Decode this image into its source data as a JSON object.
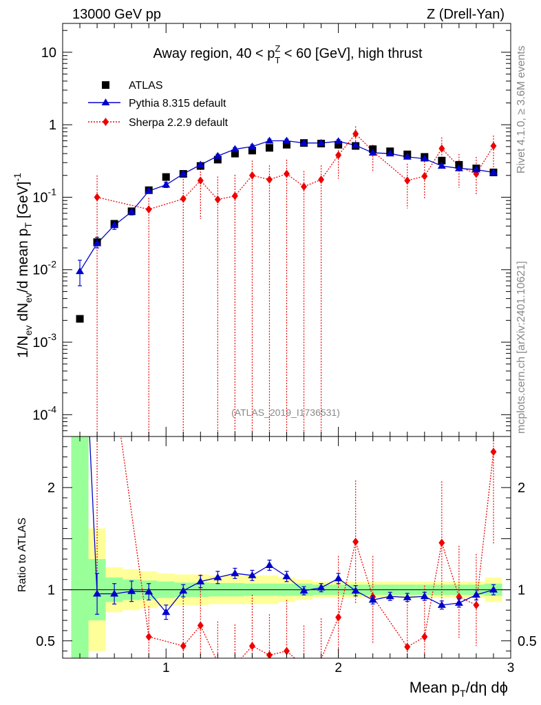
{
  "header": {
    "left": "13000 GeV pp",
    "right": "Z (Drell-Yan)"
  },
  "side_text": {
    "rivet": "Rivet 4.1.0, ≥ 3.6M events",
    "mcplots": "mcplots.cern.ch [arXiv:2401.10621]"
  },
  "watermark": "(ATLAS_2019_I1736531)",
  "chart_data": {
    "type": "scatter",
    "title": "Away region, 40 < p_T^Z < 60 [GeV], high thrust",
    "title_parts": {
      "pre": "Away region, 40 < p",
      "sup": "Z",
      "sub": "T",
      "post": " < 60 [GeV], high thrust"
    },
    "xlabel": "Mean p_T/dη dϕ",
    "xlabel_parts": {
      "pre": "Mean p",
      "sub": "T",
      "post": "/dη dϕ"
    },
    "ylabel": "1/N_ev dN_ev/d mean p_T [GeV]^-1",
    "ylabel_parts": {
      "a": "1/N",
      "a_sub": "ev",
      "b": " dN",
      "b_sub": "ev",
      "c": "/d mean p",
      "c_sub": "T",
      "d": " [GeV]",
      "d_sup": "-1"
    },
    "ratio_ylabel": "Ratio to ATLAS",
    "xlim": [
      0.4,
      3.0
    ],
    "ylim": [
      5e-05,
      25
    ],
    "yscale": "log",
    "ratio_ylim": [
      0.33,
      2.5
    ],
    "x_ticks": [
      "1",
      "2",
      "3"
    ],
    "y_ticks": [
      {
        "base": "10",
        "exp": "-4",
        "value": 0.0001
      },
      {
        "base": "10",
        "exp": "-3",
        "value": 0.001
      },
      {
        "base": "10",
        "exp": "-2",
        "value": 0.01
      },
      {
        "base": "10",
        "exp": "-1",
        "value": 0.1
      },
      {
        "base": "1",
        "exp": "",
        "value": 1
      },
      {
        "base": "10",
        "exp": "",
        "value": 10
      }
    ],
    "ratio_ticks": [
      {
        "label": "0.5",
        "value": 0.5
      },
      {
        "label": "1",
        "value": 1
      },
      {
        "label": "2",
        "value": 2
      }
    ],
    "legend": [
      "ATLAS",
      "Pythia 8.315 default",
      "Sherpa 2.2.9 default"
    ],
    "x": [
      0.5,
      0.6,
      0.7,
      0.8,
      0.9,
      1.0,
      1.1,
      1.2,
      1.3,
      1.4,
      1.5,
      1.6,
      1.7,
      1.8,
      1.9,
      2.0,
      2.1,
      2.2,
      2.3,
      2.4,
      2.5,
      2.6,
      2.7,
      2.8,
      2.9
    ],
    "series": [
      {
        "name": "ATLAS",
        "color": "#000000",
        "values": [
          0.0021,
          0.024,
          0.043,
          0.064,
          0.125,
          0.19,
          0.21,
          0.27,
          0.33,
          0.4,
          0.44,
          0.48,
          0.53,
          0.56,
          0.55,
          0.53,
          0.51,
          0.46,
          0.43,
          0.39,
          0.36,
          0.32,
          0.28,
          0.25,
          0.22
        ]
      },
      {
        "name": "Pythia 8.315 default",
        "color": "#0000cc",
        "values": [
          0.0095,
          0.023,
          0.041,
          0.063,
          0.122,
          0.148,
          0.21,
          0.28,
          0.37,
          0.46,
          0.5,
          0.6,
          0.6,
          0.56,
          0.56,
          0.59,
          0.52,
          0.41,
          0.4,
          0.36,
          0.34,
          0.27,
          0.25,
          0.24,
          0.22
        ],
        "err_low": [
          0.0035,
          0.003,
          0.005,
          0.006,
          0.008,
          0.012,
          0.014,
          0.016,
          0.02,
          0.022,
          0.025,
          0.03,
          0.03,
          0.03,
          0.03,
          0.03,
          0.025,
          0.02,
          0.02,
          0.02,
          0.018,
          0.016,
          0.015,
          0.014,
          0.013
        ],
        "err_high": [
          0.004,
          0.005,
          0.006,
          0.007,
          0.009,
          0.013,
          0.015,
          0.018,
          0.022,
          0.025,
          0.028,
          0.033,
          0.033,
          0.033,
          0.032,
          0.032,
          0.028,
          0.022,
          0.022,
          0.02,
          0.02,
          0.018,
          0.016,
          0.015,
          0.014
        ]
      },
      {
        "name": "Sherpa 2.2.9 default",
        "color": "#ee0000",
        "values": [
          null,
          0.1,
          null,
          null,
          0.068,
          null,
          0.095,
          0.17,
          0.093,
          0.104,
          0.2,
          0.175,
          0.21,
          0.14,
          0.175,
          0.38,
          0.75,
          0.43,
          null,
          0.17,
          0.195,
          0.47,
          0.265,
          0.21,
          0.51
        ],
        "err_low": [
          null,
          0.1,
          null,
          null,
          0.068,
          null,
          0.095,
          0.12,
          0.093,
          0.104,
          0.2,
          0.175,
          0.21,
          0.14,
          0.175,
          0.2,
          0.3,
          0.2,
          null,
          0.1,
          0.1,
          0.22,
          0.13,
          0.1,
          0.25
        ],
        "err_high": [
          null,
          0.1,
          null,
          null,
          0.03,
          null,
          0.1,
          0.1,
          0.1,
          0.1,
          0.12,
          0.1,
          0.12,
          0.09,
          0.1,
          0.25,
          0.2,
          0.1,
          null,
          0.12,
          0.12,
          0.2,
          0.13,
          0.15,
          0.2
        ]
      }
    ],
    "ratio_series": [
      {
        "name": "Pythia 8.315 default",
        "color": "#0000cc",
        "values": [
          4.5,
          0.96,
          0.96,
          0.985,
          0.98,
          0.78,
          0.99,
          1.08,
          1.12,
          1.16,
          1.14,
          1.24,
          1.13,
          0.99,
          1.02,
          1.11,
          0.99,
          0.9,
          0.935,
          0.925,
          0.935,
          0.85,
          0.87,
          0.95,
          1.0
        ],
        "err": [
          1.7,
          0.2,
          0.1,
          0.1,
          0.08,
          0.07,
          0.06,
          0.06,
          0.06,
          0.05,
          0.05,
          0.05,
          0.05,
          0.04,
          0.04,
          0.05,
          0.05,
          0.04,
          0.04,
          0.04,
          0.04,
          0.04,
          0.04,
          0.05,
          0.05
        ]
      },
      {
        "name": "Sherpa 2.2.9 default",
        "color": "#ee0000",
        "values": [
          null,
          4.17,
          null,
          null,
          0.54,
          null,
          0.45,
          0.65,
          0.29,
          0.26,
          0.45,
          0.36,
          0.4,
          0.25,
          0.32,
          0.73,
          1.47,
          0.93,
          null,
          0.44,
          0.54,
          1.46,
          0.93,
          0.85,
          2.35
        ],
        "err_low": [
          null,
          3.0,
          null,
          null,
          0.54,
          null,
          0.45,
          0.5,
          0.29,
          0.26,
          0.45,
          0.36,
          0.4,
          0.25,
          0.32,
          0.4,
          0.6,
          0.45,
          null,
          0.2,
          0.25,
          0.6,
          0.4,
          0.4,
          0.9
        ],
        "err_high": [
          null,
          0.5,
          null,
          null,
          0.3,
          null,
          0.5,
          0.5,
          0.4,
          0.4,
          0.5,
          0.4,
          0.5,
          0.4,
          0.4,
          0.6,
          0.6,
          0.4,
          null,
          0.5,
          0.5,
          0.6,
          0.5,
          0.5,
          0.6
        ]
      }
    ],
    "bands": {
      "edges": [
        0.45,
        0.55,
        0.65,
        0.75,
        0.85,
        0.95,
        1.05,
        1.15,
        1.25,
        1.35,
        1.45,
        1.55,
        1.65,
        1.75,
        1.85,
        1.95,
        2.05,
        2.15,
        2.25,
        2.35,
        2.45,
        2.55,
        2.65,
        2.75,
        2.85,
        2.95
      ],
      "green": [
        1.8,
        0.3,
        0.12,
        0.1,
        0.09,
        0.08,
        0.07,
        0.07,
        0.065,
        0.065,
        0.06,
        0.06,
        0.06,
        0.06,
        0.05,
        0.05,
        0.05,
        0.05,
        0.05,
        0.05,
        0.05,
        0.05,
        0.05,
        0.05,
        0.06
      ],
      "yellow": [
        3.0,
        0.6,
        0.22,
        0.2,
        0.18,
        0.16,
        0.15,
        0.15,
        0.14,
        0.14,
        0.14,
        0.14,
        0.12,
        0.1,
        0.08,
        0.08,
        0.08,
        0.08,
        0.08,
        0.08,
        0.08,
        0.08,
        0.08,
        0.08,
        0.12
      ],
      "green_color": "#99ff99",
      "yellow_color": "#ffff99"
    }
  }
}
